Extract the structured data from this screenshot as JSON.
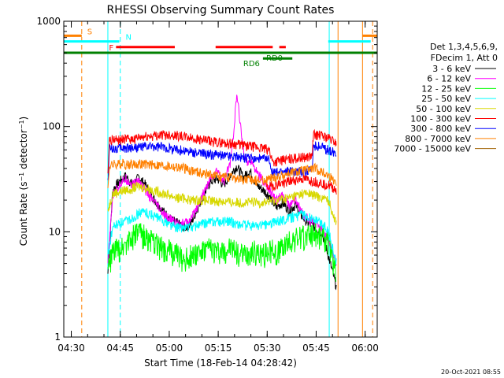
{
  "chart_data": {
    "type": "line",
    "title": "RHESSI Observing Summary Count Rates",
    "xlabel": "Start Time (18-Feb-14 04:28:42)",
    "ylabel": "Count Rate (s⁻¹ detector⁻¹)",
    "ylabel_parts": {
      "pre": "Count Rate (s",
      "sup1": "−1",
      "mid": " detector",
      "sup2": "−1",
      "post": ")"
    },
    "yscale": "log",
    "ylim": [
      1,
      1000
    ],
    "xlim_min": [
      -1,
      95
    ],
    "y_ticks": [
      {
        "value": 1,
        "label": "1"
      },
      {
        "value": 10,
        "label": "10"
      },
      {
        "value": 100,
        "label": "100"
      },
      {
        "value": 1000,
        "label": "1000"
      }
    ],
    "x_ticks": [
      {
        "value": 1.3,
        "label": "04:30"
      },
      {
        "value": 16.3,
        "label": "04:45"
      },
      {
        "value": 31.3,
        "label": "05:00"
      },
      {
        "value": 46.3,
        "label": "05:15"
      },
      {
        "value": 61.3,
        "label": "05:30"
      },
      {
        "value": 76.3,
        "label": "05:45"
      },
      {
        "value": 91.3,
        "label": "06:00"
      }
    ],
    "legend_header": [
      "Det 1,3,4,5,6,9,",
      "FDecim 1, Att 0"
    ],
    "legend_placement": "right",
    "series": [
      {
        "name": "3 - 6 keV",
        "color": "#000000",
        "xr": [
          12.5,
          82.5
        ],
        "points": [
          [
            12.5,
            4
          ],
          [
            14,
            25
          ],
          [
            16,
            30
          ],
          [
            18,
            34
          ],
          [
            20,
            28
          ],
          [
            22,
            33
          ],
          [
            24,
            28
          ],
          [
            26,
            22
          ],
          [
            28,
            18
          ],
          [
            30,
            15
          ],
          [
            32,
            13
          ],
          [
            34,
            12
          ],
          [
            36,
            11
          ],
          [
            38,
            12
          ],
          [
            40,
            17
          ],
          [
            42,
            23
          ],
          [
            44,
            30
          ],
          [
            46,
            32
          ],
          [
            48,
            28
          ],
          [
            50,
            35
          ],
          [
            52,
            42
          ],
          [
            54,
            33
          ],
          [
            56,
            38
          ],
          [
            58,
            28
          ],
          [
            60,
            25
          ],
          [
            62,
            22
          ],
          [
            64,
            17
          ],
          [
            66,
            19
          ],
          [
            68,
            16
          ],
          [
            70,
            18
          ],
          [
            72,
            14
          ],
          [
            74,
            12
          ],
          [
            76,
            11
          ],
          [
            78,
            10
          ],
          [
            80,
            6
          ],
          [
            82.5,
            3
          ]
        ]
      },
      {
        "name": "6 - 12 keV",
        "color": "#ff00ff",
        "xr": [
          12.5,
          82.5
        ],
        "points": [
          [
            12.5,
            5
          ],
          [
            14,
            22
          ],
          [
            16,
            28
          ],
          [
            18,
            32
          ],
          [
            20,
            28
          ],
          [
            22,
            31
          ],
          [
            24,
            25
          ],
          [
            26,
            20
          ],
          [
            28,
            17
          ],
          [
            30,
            14
          ],
          [
            32,
            13
          ],
          [
            34,
            12
          ],
          [
            36,
            12
          ],
          [
            38,
            13
          ],
          [
            40,
            18
          ],
          [
            42,
            24
          ],
          [
            44,
            32
          ],
          [
            46,
            38
          ],
          [
            48,
            30
          ],
          [
            50,
            45
          ],
          [
            51,
            90
          ],
          [
            52,
            200
          ],
          [
            53,
            110
          ],
          [
            54,
            60
          ],
          [
            55,
            45
          ],
          [
            56,
            50
          ],
          [
            58,
            38
          ],
          [
            60,
            30
          ],
          [
            62,
            25
          ],
          [
            64,
            20
          ],
          [
            66,
            22
          ],
          [
            68,
            18
          ],
          [
            70,
            20
          ],
          [
            72,
            15
          ],
          [
            74,
            13
          ],
          [
            76,
            12
          ],
          [
            78,
            11
          ],
          [
            80,
            8
          ],
          [
            82.5,
            5
          ]
        ]
      },
      {
        "name": "12 - 25 keV",
        "color": "#00ff00",
        "xr": [
          12.5,
          82.5
        ],
        "points": [
          [
            12.5,
            4.5
          ],
          [
            14,
            6.5
          ],
          [
            16,
            7
          ],
          [
            18,
            8
          ],
          [
            20,
            9
          ],
          [
            22,
            10
          ],
          [
            24,
            9
          ],
          [
            26,
            8
          ],
          [
            28,
            7.5
          ],
          [
            30,
            7
          ],
          [
            32,
            6.5
          ],
          [
            34,
            6
          ],
          [
            36,
            5.5
          ],
          [
            38,
            6
          ],
          [
            40,
            6.5
          ],
          [
            42,
            6.5
          ],
          [
            44,
            7
          ],
          [
            46,
            6.5
          ],
          [
            48,
            6.5
          ],
          [
            50,
            7
          ],
          [
            52,
            6.5
          ],
          [
            54,
            6
          ],
          [
            56,
            6.5
          ],
          [
            58,
            6.5
          ],
          [
            60,
            6
          ],
          [
            62,
            7
          ],
          [
            64,
            6.5
          ],
          [
            66,
            7
          ],
          [
            68,
            8
          ],
          [
            70,
            8.5
          ],
          [
            72,
            9
          ],
          [
            74,
            9.5
          ],
          [
            76,
            10
          ],
          [
            78,
            9
          ],
          [
            80,
            8
          ],
          [
            82.5,
            4
          ]
        ]
      },
      {
        "name": "25 - 50 keV",
        "color": "#00ffff",
        "xr": [
          12.5,
          82.5
        ],
        "points": [
          [
            12.5,
            6
          ],
          [
            14,
            11
          ],
          [
            16,
            12
          ],
          [
            18,
            12.5
          ],
          [
            20,
            13.5
          ],
          [
            22,
            15
          ],
          [
            24,
            15.5
          ],
          [
            26,
            14.5
          ],
          [
            28,
            13.5
          ],
          [
            30,
            12.5
          ],
          [
            32,
            11.5
          ],
          [
            34,
            11
          ],
          [
            36,
            11
          ],
          [
            38,
            11
          ],
          [
            40,
            11.5
          ],
          [
            42,
            12
          ],
          [
            44,
            12.5
          ],
          [
            46,
            12.5
          ],
          [
            48,
            12.5
          ],
          [
            50,
            12.5
          ],
          [
            52,
            12
          ],
          [
            54,
            11.5
          ],
          [
            56,
            11.5
          ],
          [
            58,
            11.5
          ],
          [
            60,
            11.5
          ],
          [
            62,
            12
          ],
          [
            64,
            12.5
          ],
          [
            66,
            13
          ],
          [
            68,
            13.5
          ],
          [
            70,
            14
          ],
          [
            72,
            14.5
          ],
          [
            74,
            14
          ],
          [
            76,
            13
          ],
          [
            78,
            12
          ],
          [
            80,
            10.5
          ],
          [
            82.5,
            5
          ]
        ]
      },
      {
        "name": "50 - 100 keV",
        "color": "#d8d800",
        "xr": [
          12.5,
          82.5
        ],
        "points": [
          [
            12.5,
            16
          ],
          [
            14,
            23
          ],
          [
            16,
            24
          ],
          [
            18,
            25
          ],
          [
            20,
            26
          ],
          [
            22,
            27
          ],
          [
            24,
            26
          ],
          [
            26,
            25
          ],
          [
            28,
            24
          ],
          [
            30,
            23
          ],
          [
            32,
            22
          ],
          [
            34,
            21
          ],
          [
            36,
            21
          ],
          [
            38,
            20
          ],
          [
            40,
            20
          ],
          [
            42,
            20
          ],
          [
            44,
            19.5
          ],
          [
            46,
            19.5
          ],
          [
            48,
            19.5
          ],
          [
            50,
            19
          ],
          [
            52,
            19
          ],
          [
            54,
            19
          ],
          [
            56,
            19
          ],
          [
            58,
            19
          ],
          [
            60,
            19
          ],
          [
            62,
            19.5
          ],
          [
            64,
            20
          ],
          [
            66,
            20.5
          ],
          [
            68,
            21
          ],
          [
            70,
            22
          ],
          [
            72,
            23
          ],
          [
            74,
            23
          ],
          [
            76,
            22
          ],
          [
            78,
            21
          ],
          [
            80,
            20
          ],
          [
            82.5,
            12
          ]
        ]
      },
      {
        "name": "100 - 300 keV",
        "color": "#ff0000",
        "xr": [
          61,
          82.5
        ],
        "points": [
          [
            61,
            26
          ],
          [
            62,
            27
          ],
          [
            64,
            28
          ],
          [
            66,
            29
          ],
          [
            68,
            30
          ],
          [
            70,
            31
          ],
          [
            72,
            32
          ],
          [
            74,
            31
          ],
          [
            76,
            30
          ],
          [
            78,
            29
          ],
          [
            80,
            28
          ],
          [
            82.5,
            25
          ]
        ]
      },
      {
        "name": "300 - 800 keV",
        "color": "#0000ff",
        "xr": [
          12.5,
          82.5
        ],
        "points": [
          [
            12.5,
            30
          ],
          [
            13,
            62
          ],
          [
            16,
            62
          ],
          [
            20,
            63
          ],
          [
            24,
            64
          ],
          [
            28,
            64
          ],
          [
            32,
            62
          ],
          [
            36,
            59
          ],
          [
            40,
            56
          ],
          [
            44,
            54
          ],
          [
            48,
            53
          ],
          [
            52,
            52
          ],
          [
            56,
            50
          ],
          [
            60,
            49
          ],
          [
            62,
            48
          ],
          [
            63,
            36
          ],
          [
            66,
            37
          ],
          [
            70,
            38
          ],
          [
            74,
            38
          ],
          [
            75,
            38
          ],
          [
            75.5,
            66
          ],
          [
            78,
            64
          ],
          [
            80,
            60
          ],
          [
            82.5,
            55
          ]
        ]
      },
      {
        "name": "800 - 7000 keV",
        "color": "#ff8000",
        "xr": [
          12.5,
          82.5
        ],
        "points": [
          [
            12.5,
            25
          ],
          [
            13,
            43
          ],
          [
            16,
            44
          ],
          [
            20,
            44
          ],
          [
            24,
            44
          ],
          [
            28,
            43
          ],
          [
            32,
            42
          ],
          [
            36,
            40
          ],
          [
            40,
            37
          ],
          [
            44,
            35
          ],
          [
            48,
            33
          ],
          [
            52,
            32
          ],
          [
            56,
            31
          ],
          [
            60,
            31
          ],
          [
            64,
            33
          ],
          [
            68,
            36
          ],
          [
            72,
            38
          ],
          [
            76,
            40
          ],
          [
            78,
            37
          ],
          [
            80,
            34
          ],
          [
            82.5,
            30
          ]
        ]
      },
      {
        "name": "7000 - 15000 keV",
        "color": "#a06000",
        "xr": [
          0,
          0
        ],
        "points": []
      }
    ],
    "top_series": [
      {
        "name": "100 - 300 keV",
        "color": "#ff0000",
        "xr": [
          12.5,
          82.5
        ],
        "points": [
          [
            12.5,
            40
          ],
          [
            13,
            75
          ],
          [
            16,
            75
          ],
          [
            20,
            76
          ],
          [
            24,
            80
          ],
          [
            28,
            83
          ],
          [
            32,
            84
          ],
          [
            36,
            80
          ],
          [
            40,
            76
          ],
          [
            44,
            72
          ],
          [
            48,
            70
          ],
          [
            52,
            68
          ],
          [
            56,
            65
          ],
          [
            60,
            62
          ],
          [
            62,
            60
          ],
          [
            63,
            46
          ],
          [
            66,
            48
          ],
          [
            70,
            50
          ],
          [
            74,
            52
          ],
          [
            75,
            52
          ],
          [
            75.5,
            84
          ],
          [
            78,
            82
          ],
          [
            80,
            78
          ],
          [
            82.5,
            70
          ]
        ]
      }
    ],
    "flags": [
      {
        "label": "S",
        "color": "#ff8000",
        "level": 2,
        "segments": [
          [
            -1,
            4.5
          ],
          [
            90.5,
            95
          ]
        ]
      },
      {
        "label": "N",
        "color": "#00ffff",
        "level": 3,
        "segments": [
          [
            -1,
            16
          ],
          [
            80,
            93
          ]
        ]
      },
      {
        "label": "F",
        "color": "#ff0000",
        "level": 4,
        "segments": [
          [
            15,
            33
          ],
          [
            45.5,
            63
          ],
          [
            65,
            67
          ]
        ]
      },
      {
        "label": "RD0",
        "color": "#008000",
        "level": 5,
        "segments": [
          [
            -1,
            95
          ]
        ]
      },
      {
        "label": "RD6",
        "color": "#008000",
        "level": 6,
        "segments": [
          [
            60,
            69
          ]
        ]
      }
    ],
    "vlines": [
      {
        "x": 4.5,
        "color": "#ff8000",
        "dash": true
      },
      {
        "x": 12.5,
        "color": "#00ffff",
        "dash": false
      },
      {
        "x": 16.3,
        "color": "#00ffff",
        "dash": true
      },
      {
        "x": 80.3,
        "color": "#00ffff",
        "dash": false
      },
      {
        "x": 83,
        "color": "#ff8000",
        "dash": false
      },
      {
        "x": 90.5,
        "color": "#ff8000",
        "dash": false
      },
      {
        "x": 93.6,
        "color": "#ff8000",
        "dash": true
      }
    ],
    "timestamp": "20-Oct-2021 08:55"
  }
}
